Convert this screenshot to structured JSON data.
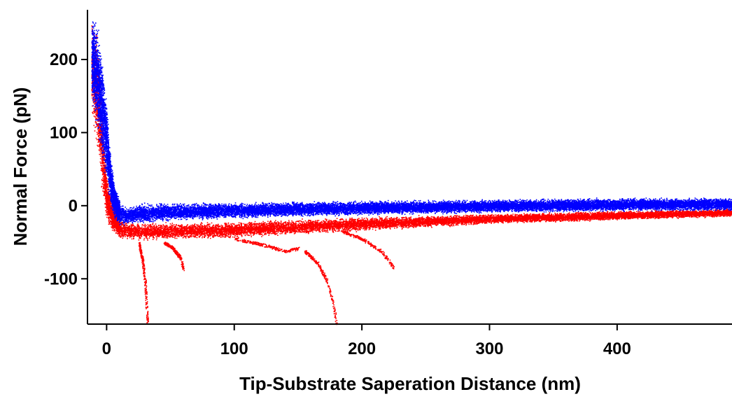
{
  "chart_data": {
    "type": "scatter",
    "title": "",
    "xlabel": "Tip-Substrate Saperation Distance (nm)",
    "ylabel": "Normal Force (pN)",
    "xlim": [
      -15,
      490
    ],
    "ylim": [
      -162,
      268
    ],
    "x_ticks": [
      0,
      100,
      200,
      300,
      400
    ],
    "y_ticks": [
      200,
      100,
      0,
      -100
    ],
    "x_tick_labels": [
      "0",
      "100",
      "200",
      "300",
      "400"
    ],
    "y_tick_labels": [
      "200",
      "100",
      "0",
      "-100"
    ],
    "grid": false,
    "legend": "none",
    "series": [
      {
        "color": "#ff0000",
        "band": {
          "x": [
            -12,
            -8,
            -4,
            0,
            5,
            10,
            20,
            40,
            100,
            150,
            200,
            300,
            400,
            490
          ],
          "y_low": [
            120,
            70,
            10,
            -25,
            -38,
            -45,
            -48,
            -47,
            -45,
            -40,
            -35,
            -25,
            -20,
            -15
          ],
          "y_high": [
            260,
            250,
            150,
            40,
            5,
            -15,
            -22,
            -22,
            -20,
            -17,
            -14,
            -10,
            -6,
            -3
          ]
        },
        "branches": [
          {
            "x": [
              25,
              28,
              30,
              31,
              32
            ],
            "y": [
              -50,
              -75,
              -105,
              -135,
              -160
            ]
          },
          {
            "x": [
              45,
              52,
              58,
              60
            ],
            "y": [
              -50,
              -58,
              -72,
              -88
            ]
          },
          {
            "x": [
              100,
              120,
              140,
              150
            ],
            "y": [
              -45,
              -52,
              -62,
              -58
            ]
          },
          {
            "x": [
              155,
              165,
              172,
              177,
              180
            ],
            "y": [
              -62,
              -78,
              -100,
              -130,
              -162
            ]
          },
          {
            "x": [
              185,
              200,
              215,
              225
            ],
            "y": [
              -35,
              -45,
              -62,
              -85
            ]
          }
        ]
      },
      {
        "color": "#0000ff",
        "band": {
          "x": [
            -12,
            -8,
            -4,
            0,
            3,
            6,
            10,
            15,
            25,
            50,
            100,
            200,
            300,
            400,
            490
          ],
          "y_low": [
            140,
            95,
            60,
            25,
            -5,
            -20,
            -27,
            -28,
            -25,
            -22,
            -18,
            -13,
            -10,
            -8,
            -7
          ],
          "y_high": [
            265,
            262,
            210,
            140,
            70,
            30,
            10,
            0,
            5,
            6,
            6,
            8,
            10,
            12,
            12
          ]
        },
        "branches": []
      }
    ]
  }
}
